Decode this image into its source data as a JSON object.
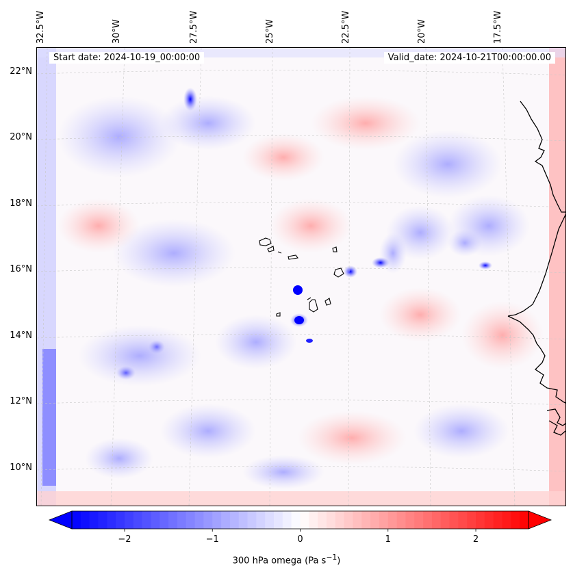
{
  "header": {
    "start_date": "Start date: 2024-10-19_00:00:00",
    "valid_date": "Valid_date: 2024-10-21T00:00:00.00"
  },
  "axes": {
    "longitude_labels": [
      "32.5°W",
      "30°W",
      "27.5°W",
      "25°W",
      "22.5°W",
      "20°W",
      "17.5°W"
    ],
    "latitude_labels": [
      "22°N",
      "20°N",
      "18°N",
      "16°N",
      "14°N",
      "12°N",
      "10°N"
    ]
  },
  "colorbar": {
    "ticks": [
      "−2",
      "−1",
      "0",
      "1",
      "2"
    ],
    "tick_values": [
      -2,
      -1,
      0,
      1,
      2
    ],
    "range": [
      -2.6,
      2.6
    ],
    "label_prefix": "300 hPa omega (Pa s",
    "label_exponent": "−1",
    "label_suffix": ")",
    "cmap": [
      "#0000ff",
      "#ffffff",
      "#ff0000"
    ]
  },
  "colors": {
    "ocean_background": "#fbf8fb",
    "coastline": "#000000",
    "gridline": "#c8c8c8"
  }
}
